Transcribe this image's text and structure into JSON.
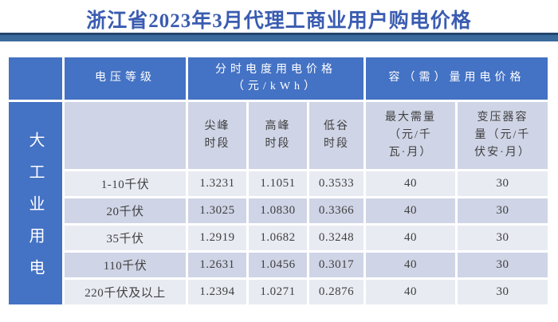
{
  "title": "浙江省2023年3月代理工商业用户购电价格",
  "colors": {
    "header_blue": "#4472c4",
    "band_dark": "#cfd4e6",
    "band_light": "#e9ebf3",
    "title_blue": "#3a5cb0",
    "bar_top": "#24456e",
    "bar_body": "#3a6b9c",
    "text_dark": "#404040"
  },
  "table": {
    "category_label": "大工业用电",
    "header_voltage": "电压等级",
    "header_tou": "分时电度用电价格\n（元/kWh）",
    "header_capacity": "容（需）量用电价格",
    "subheaders": [
      "尖峰\n时段",
      "高峰\n时段",
      "低谷\n时段",
      "最大需量\n（元/千\n瓦·月）",
      "变压器容\n量（元/千\n伏安·月）"
    ],
    "rows": [
      [
        "1-10千伏",
        "1.3231",
        "1.1051",
        "0.3533",
        "40",
        "30"
      ],
      [
        "20千伏",
        "1.3025",
        "1.0830",
        "0.3366",
        "40",
        "30"
      ],
      [
        "35千伏",
        "1.2919",
        "1.0682",
        "0.3248",
        "40",
        "30"
      ],
      [
        "110千伏",
        "1.2631",
        "1.0456",
        "0.3017",
        "40",
        "30"
      ],
      [
        "220千伏及以上",
        "1.2394",
        "1.0271",
        "0.2876",
        "40",
        "30"
      ]
    ]
  }
}
